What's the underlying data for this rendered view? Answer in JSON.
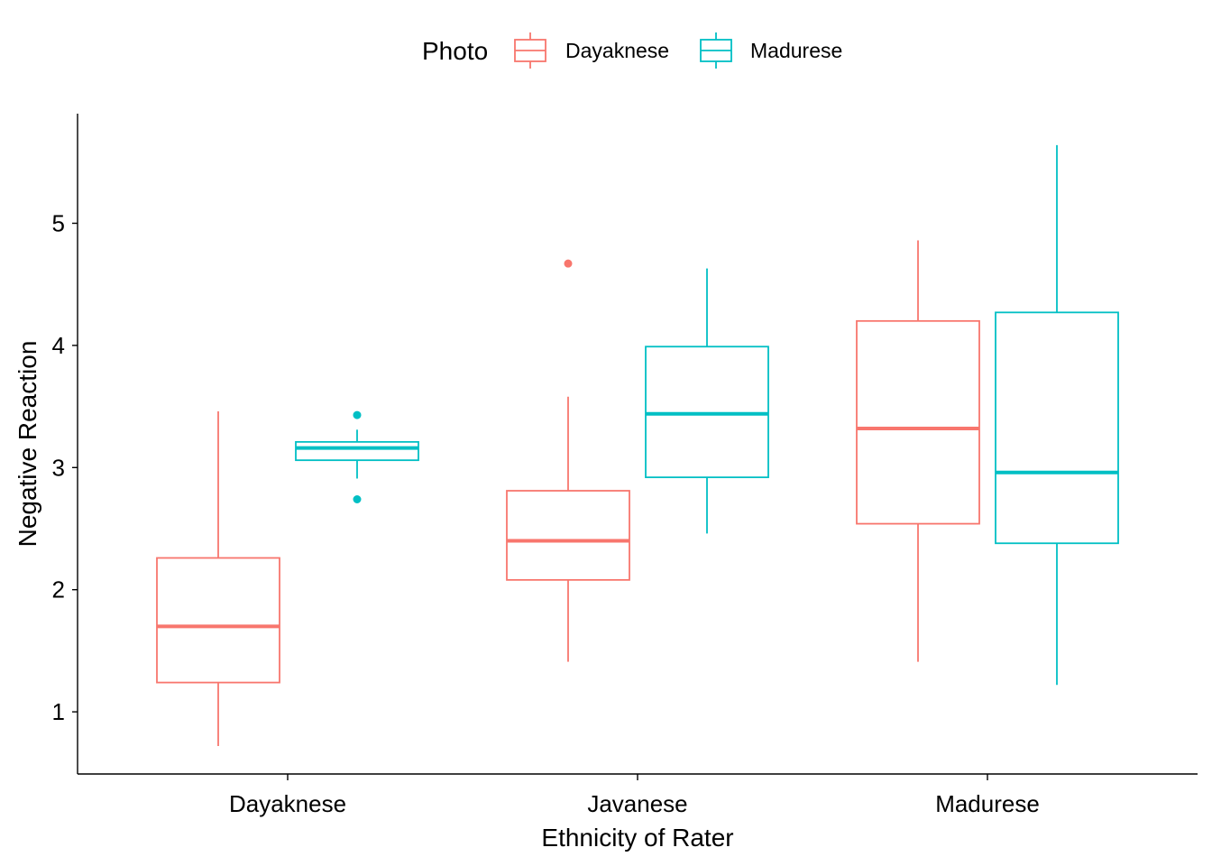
{
  "chart_data": {
    "type": "box",
    "xlabel": "Ethnicity of Rater",
    "ylabel": "Negative Reaction",
    "categories": [
      "Dayaknese",
      "Javanese",
      "Madurese"
    ],
    "ylim": [
      0.45,
      5.85
    ],
    "yticks": [
      1,
      2,
      3,
      4,
      5
    ],
    "grid": false,
    "legend": {
      "title": "Photo",
      "position": "top"
    },
    "series": [
      {
        "name": "Dayaknese",
        "color": "#F8766D",
        "boxes": [
          {
            "category": "Dayaknese",
            "whisker_low": 0.72,
            "q1": 1.24,
            "median": 1.7,
            "q3": 2.26,
            "whisker_high": 3.46,
            "outliers": []
          },
          {
            "category": "Javanese",
            "whisker_low": 1.41,
            "q1": 2.08,
            "median": 2.4,
            "q3": 2.81,
            "whisker_high": 3.58,
            "outliers": [
              4.67
            ]
          },
          {
            "category": "Madurese",
            "whisker_low": 1.41,
            "q1": 2.54,
            "median": 3.32,
            "q3": 4.2,
            "whisker_high": 4.86,
            "outliers": []
          }
        ]
      },
      {
        "name": "Madurese",
        "color": "#00BFC4",
        "boxes": [
          {
            "category": "Dayaknese",
            "whisker_low": 2.91,
            "q1": 3.06,
            "median": 3.16,
            "q3": 3.21,
            "whisker_high": 3.31,
            "outliers": [
              2.74,
              3.43
            ]
          },
          {
            "category": "Javanese",
            "whisker_low": 2.46,
            "q1": 2.92,
            "median": 3.44,
            "q3": 3.99,
            "whisker_high": 4.63,
            "outliers": []
          },
          {
            "category": "Madurese",
            "whisker_low": 1.22,
            "q1": 2.38,
            "median": 2.96,
            "q3": 4.27,
            "whisker_high": 5.64,
            "outliers": []
          }
        ]
      }
    ]
  }
}
